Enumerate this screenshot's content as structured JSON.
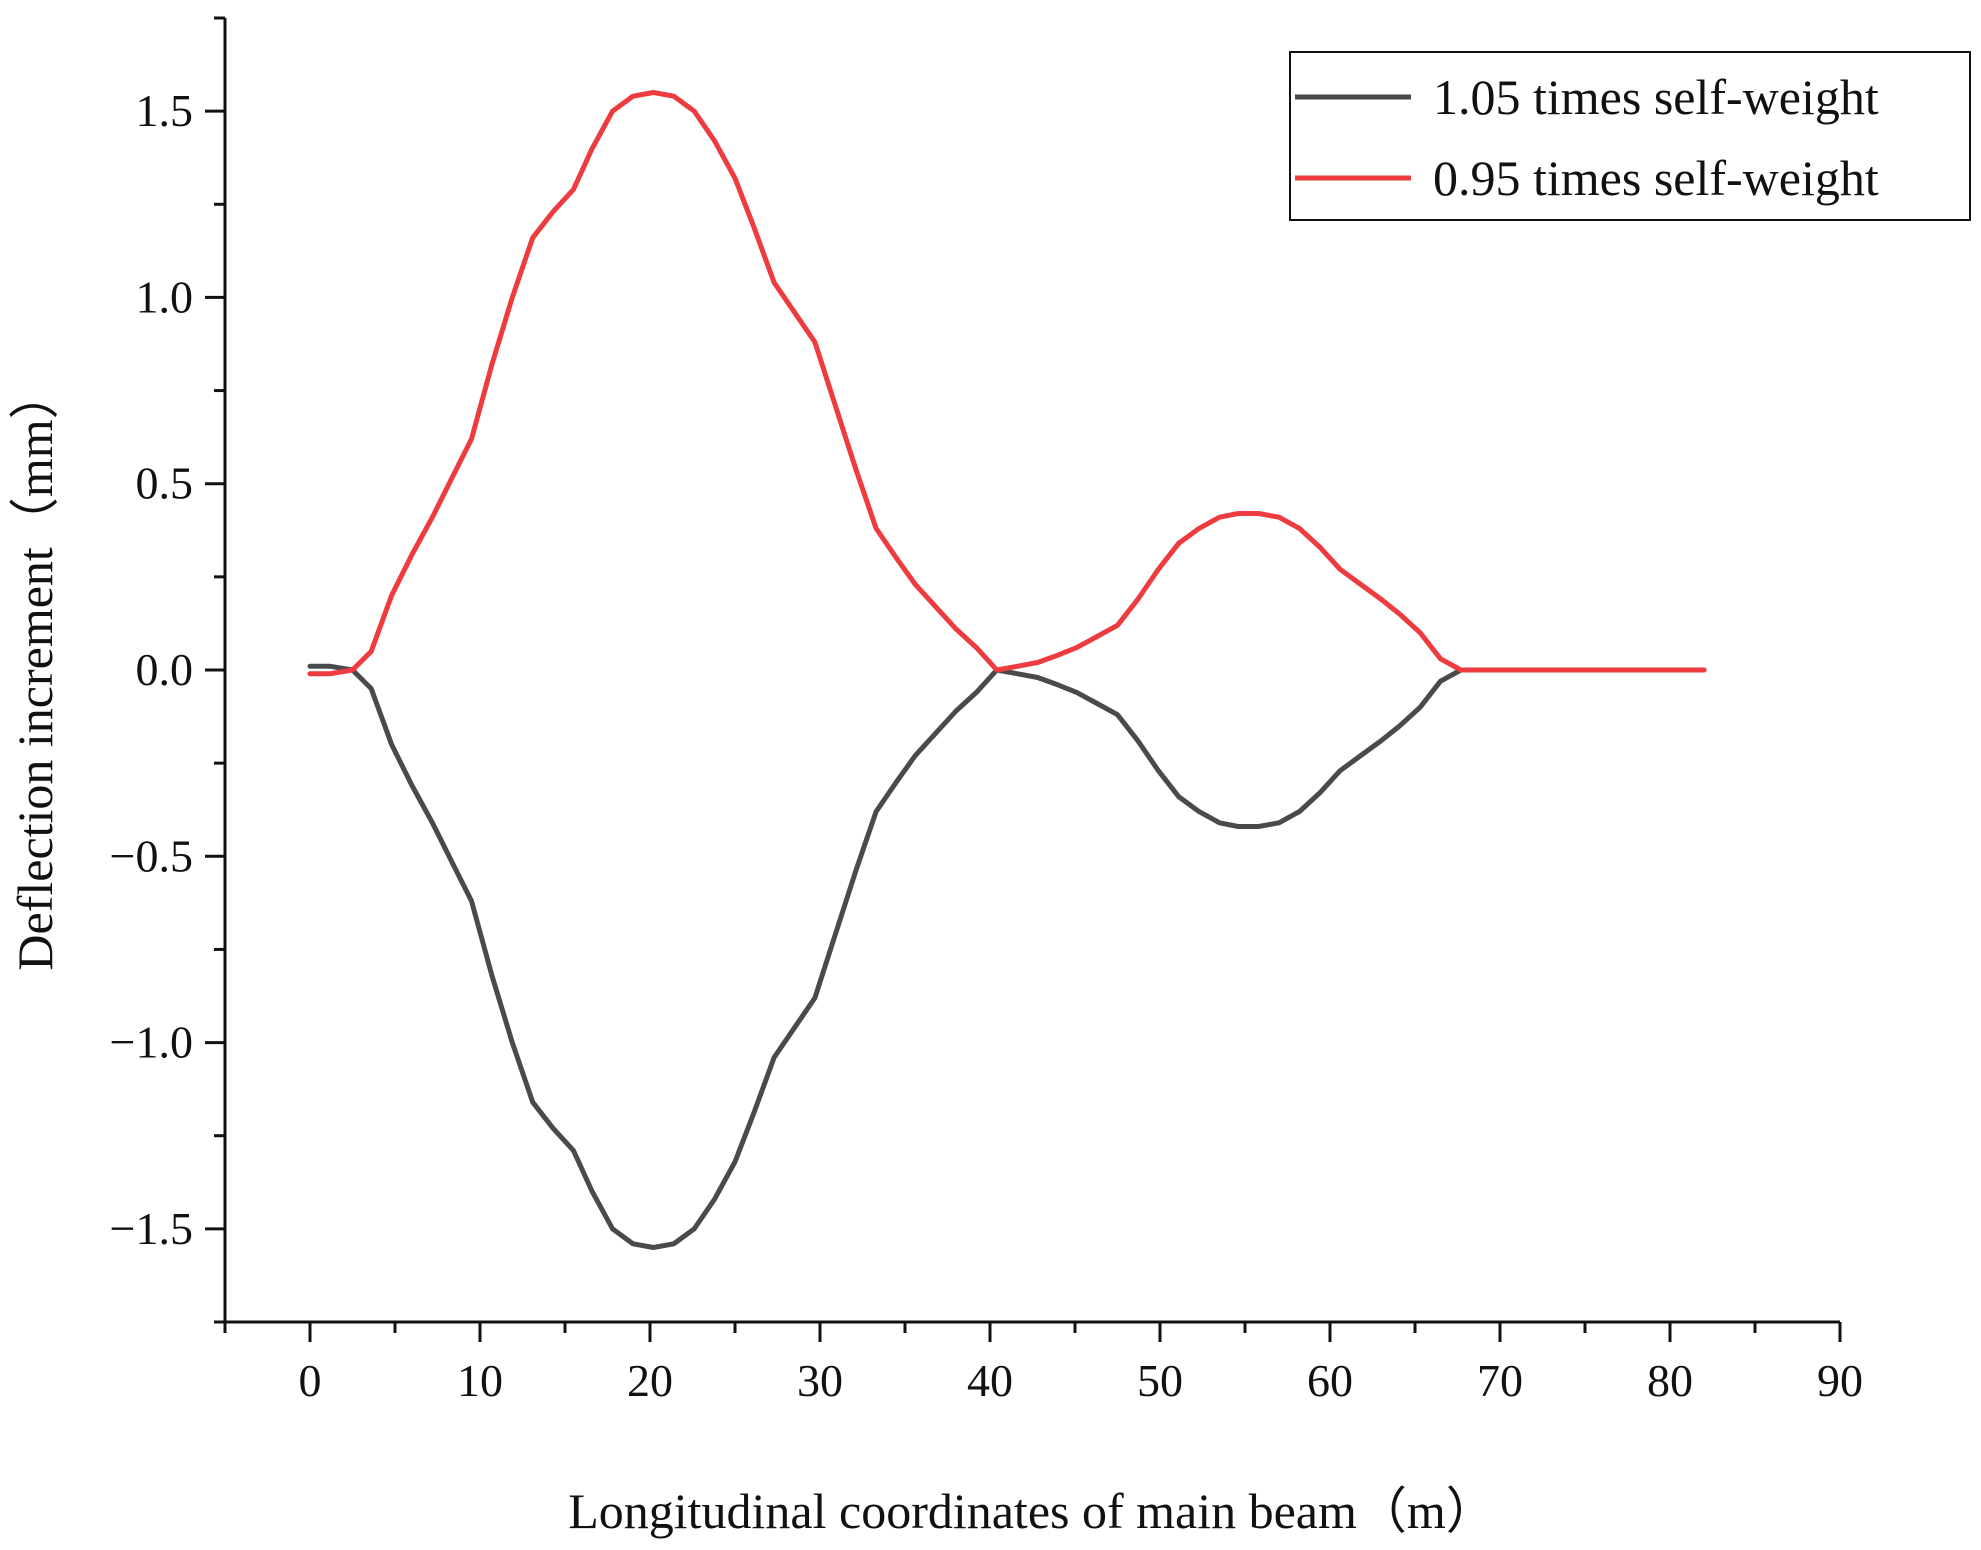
{
  "chart_data": {
    "type": "line",
    "title": "",
    "xlabel": "Longitudinal coordinates of main beam（m）",
    "ylabel": "Deflection increment（mm）",
    "xlim": [
      -5,
      90
    ],
    "ylim": [
      -1.75,
      1.75
    ],
    "x_ticks": [
      0,
      10,
      20,
      30,
      40,
      50,
      60,
      70,
      80,
      90
    ],
    "y_ticks": [
      -1.5,
      -1.0,
      -0.5,
      0.0,
      0.5,
      1.0,
      1.5
    ],
    "x_tick_labels": [
      "0",
      "10",
      "20",
      "30",
      "40",
      "50",
      "60",
      "70",
      "80",
      "90"
    ],
    "y_tick_labels": [
      "−1.5",
      "−1.0",
      "−0.5",
      "0.0",
      "0.5",
      "1.0",
      "1.5"
    ],
    "grid": false,
    "legend_position": "top-right",
    "series": [
      {
        "name": "1.05 times self-weight",
        "color": "#4a4a4a",
        "x": [
          0,
          1.2,
          2.5,
          3.6,
          4.8,
          6.0,
          7.2,
          8.4,
          9.5,
          10.7,
          11.9,
          13.1,
          14.3,
          15.5,
          16.6,
          17.8,
          19.0,
          20.2,
          21.4,
          22.6,
          23.8,
          25.0,
          26.1,
          27.3,
          28.5,
          29.7,
          30.9,
          32.1,
          33.3,
          34.5,
          35.6,
          36.8,
          38.0,
          39.2,
          40.4,
          41.6,
          42.8,
          44.0,
          45.1,
          46.3,
          47.5,
          48.7,
          49.9,
          51.1,
          52.3,
          53.5,
          54.6,
          55.8,
          57.0,
          58.2,
          59.4,
          60.6,
          61.8,
          63.0,
          64.1,
          65.3,
          66.5,
          67.7,
          68.9,
          70.1,
          71.3,
          72.5,
          73.6,
          74.8,
          76.0,
          77.2,
          78.4,
          79.6,
          80.8,
          82.0
        ],
        "y": [
          0.01,
          0.01,
          0.0,
          -0.05,
          -0.2,
          -0.31,
          -0.41,
          -0.52,
          -0.62,
          -0.82,
          -1.0,
          -1.16,
          -1.23,
          -1.29,
          -1.4,
          -1.5,
          -1.54,
          -1.55,
          -1.54,
          -1.5,
          -1.42,
          -1.32,
          -1.19,
          -1.04,
          -0.96,
          -0.88,
          -0.71,
          -0.54,
          -0.38,
          -0.3,
          -0.23,
          -0.17,
          -0.11,
          -0.06,
          0.0,
          -0.01,
          -0.02,
          -0.04,
          -0.06,
          -0.09,
          -0.12,
          -0.19,
          -0.27,
          -0.34,
          -0.38,
          -0.41,
          -0.42,
          -0.42,
          -0.41,
          -0.38,
          -0.33,
          -0.27,
          -0.23,
          -0.19,
          -0.15,
          -0.1,
          -0.03,
          0.0,
          0.0,
          0.0,
          0.0,
          0.0,
          0.0,
          0.0,
          0.0,
          0.0,
          0.0,
          0.0,
          0.0,
          0.0
        ]
      },
      {
        "name": "0.95 times self-weight",
        "color": "#ee3b3f",
        "x": [
          0,
          1.2,
          2.5,
          3.6,
          4.8,
          6.0,
          7.2,
          8.4,
          9.5,
          10.7,
          11.9,
          13.1,
          14.3,
          15.5,
          16.6,
          17.8,
          19.0,
          20.2,
          21.4,
          22.6,
          23.8,
          25.0,
          26.1,
          27.3,
          28.5,
          29.7,
          30.9,
          32.1,
          33.3,
          34.5,
          35.6,
          36.8,
          38.0,
          39.2,
          40.4,
          41.6,
          42.8,
          44.0,
          45.1,
          46.3,
          47.5,
          48.7,
          49.9,
          51.1,
          52.3,
          53.5,
          54.6,
          55.8,
          57.0,
          58.2,
          59.4,
          60.6,
          61.8,
          63.0,
          64.1,
          65.3,
          66.5,
          67.7,
          68.9,
          70.1,
          71.3,
          72.5,
          73.6,
          74.8,
          76.0,
          77.2,
          78.4,
          79.6,
          80.8,
          82.0
        ],
        "y": [
          -0.01,
          -0.01,
          0.0,
          0.05,
          0.2,
          0.31,
          0.41,
          0.52,
          0.62,
          0.82,
          1.0,
          1.16,
          1.23,
          1.29,
          1.4,
          1.5,
          1.54,
          1.55,
          1.54,
          1.5,
          1.42,
          1.32,
          1.19,
          1.04,
          0.96,
          0.88,
          0.71,
          0.54,
          0.38,
          0.3,
          0.23,
          0.17,
          0.11,
          0.06,
          0.0,
          0.01,
          0.02,
          0.04,
          0.06,
          0.09,
          0.12,
          0.19,
          0.27,
          0.34,
          0.38,
          0.41,
          0.42,
          0.42,
          0.41,
          0.38,
          0.33,
          0.27,
          0.23,
          0.19,
          0.15,
          0.1,
          0.03,
          0.0,
          0.0,
          0.0,
          0.0,
          0.0,
          0.0,
          0.0,
          0.0,
          0.0,
          0.0,
          0.0,
          0.0,
          0.0
        ]
      }
    ]
  }
}
